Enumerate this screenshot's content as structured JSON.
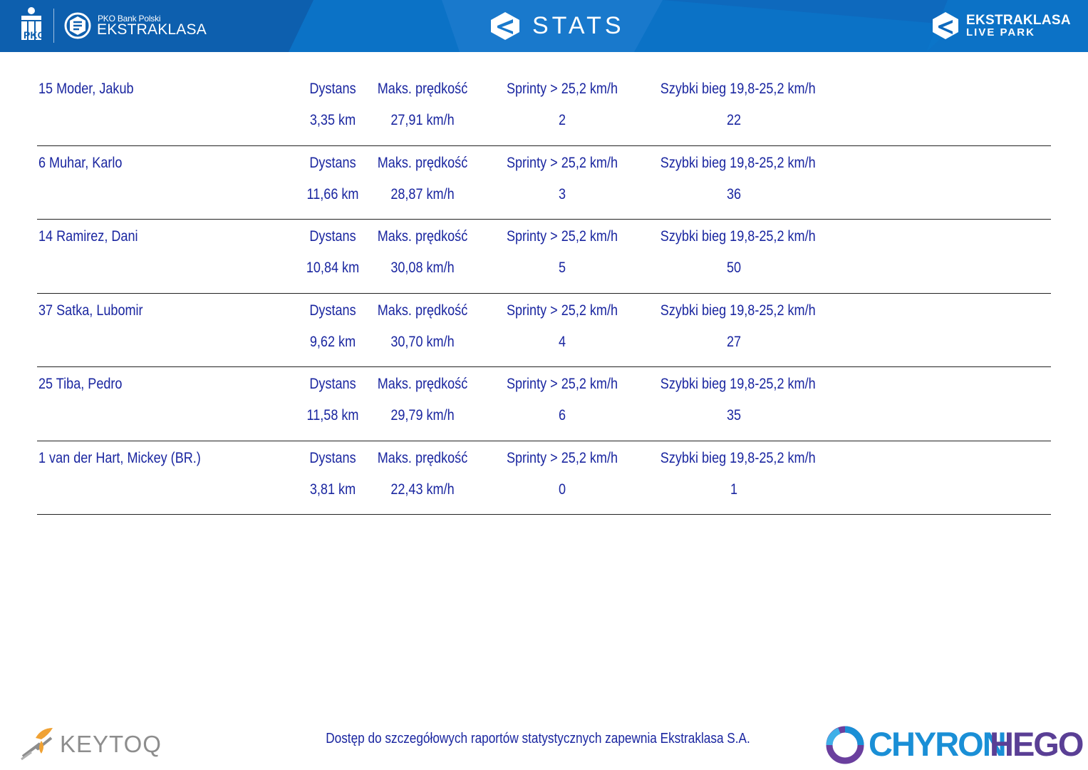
{
  "header": {
    "sponsor_small": "PKO Bank Polski",
    "sponsor_big": "EKSTRAKLASA",
    "title": "STATS",
    "live_park_line1": "EKSTRAKLASA",
    "live_park_line2": "LIVE PARK",
    "colors": {
      "bar": "#0a6fc1",
      "text": "#ffffff"
    }
  },
  "labels": {
    "distance": "Dystans",
    "max_speed": "Maks. prędkość",
    "sprints": "Sprinty > 25,2 km/h",
    "fast_runs": "Szybki bieg 19,8-25,2 km/h"
  },
  "players": [
    {
      "name": "15  Moder, Jakub",
      "distance": "3,35 km",
      "max_speed": "27,91 km/h",
      "sprints": "2",
      "fast_runs": "22"
    },
    {
      "name": "6  Muhar, Karlo",
      "distance": "11,66 km",
      "max_speed": "28,87 km/h",
      "sprints": "3",
      "fast_runs": "36"
    },
    {
      "name": "14  Ramirez, Dani",
      "distance": "10,84 km",
      "max_speed": "30,08 km/h",
      "sprints": "5",
      "fast_runs": "50"
    },
    {
      "name": "37  Satka, Lubomir",
      "distance": "9,62 km",
      "max_speed": "30,70 km/h",
      "sprints": "4",
      "fast_runs": "27"
    },
    {
      "name": "25  Tiba, Pedro",
      "distance": "11,58 km",
      "max_speed": "29,79 km/h",
      "sprints": "6",
      "fast_runs": "35"
    },
    {
      "name": "1  van der Hart, Mickey (BR.)",
      "distance": "3,81 km",
      "max_speed": "22,43 km/h",
      "sprints": "0",
      "fast_runs": "1"
    }
  ],
  "footer": {
    "note": "Dostęp do szczegółowych raportów statystycznych zapewnia Ekstraklasa S.A.",
    "keytoq": "KEYTOQ",
    "chyron_part1": "CHYRON",
    "chyron_part2": "HEGO",
    "text_color": "#1a26a0"
  },
  "icons": [
    "pko-bank-logo-icon",
    "ekstraklasa-ball-icon",
    "ekstraklasa-e-icon",
    "live-park-e-icon",
    "keytoq-logo-icon",
    "chyronhego-logo-icon"
  ]
}
